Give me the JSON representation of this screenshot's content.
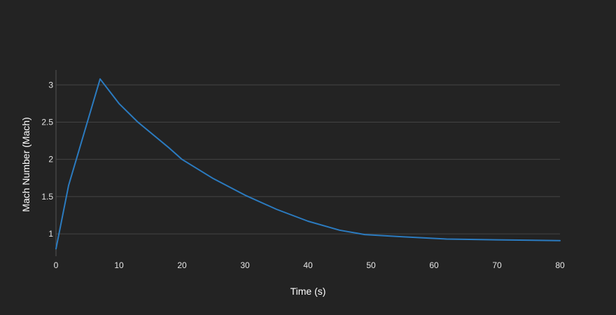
{
  "chart_data": {
    "type": "line",
    "title": "",
    "xlabel": "Time (s)",
    "ylabel": "Mach Number (Mach)",
    "xlim": [
      0,
      80
    ],
    "ylim": [
      0.7,
      3.2
    ],
    "xticks": [
      0,
      10,
      20,
      30,
      40,
      50,
      60,
      70,
      80
    ],
    "xtick_labels": [
      "0",
      "10",
      "20",
      "30",
      "40",
      "50",
      "60",
      "70",
      "80"
    ],
    "yticks": [
      1,
      1.5,
      2,
      2.5,
      3
    ],
    "ytick_labels": [
      "1",
      "1.5",
      "2",
      "2.5",
      "3"
    ],
    "grid": true,
    "legend": "none",
    "series": [
      {
        "color": "#2b7bc0",
        "x": [
          0,
          2,
          7,
          10,
          13,
          15,
          18,
          20,
          25,
          30,
          35,
          40,
          45,
          49,
          55,
          62,
          70,
          80
        ],
        "y": [
          0.8,
          1.65,
          3.08,
          2.75,
          2.5,
          2.36,
          2.15,
          2.0,
          1.74,
          1.52,
          1.33,
          1.17,
          1.05,
          0.99,
          0.96,
          0.93,
          0.92,
          0.91
        ]
      }
    ]
  }
}
